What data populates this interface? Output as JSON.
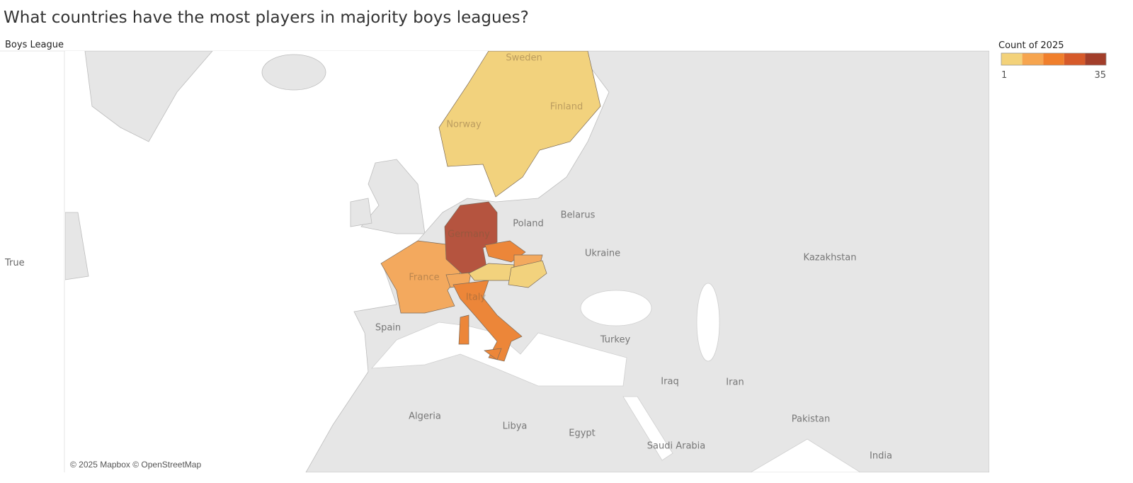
{
  "header": {
    "title": "What countries have the most players in majority boys leagues?"
  },
  "row_header": "Boys League",
  "row_label": "True",
  "legend": {
    "title": "Count of 2025",
    "min": 1,
    "max": 35,
    "colors": [
      "#f3d27a",
      "#f6a54f",
      "#f07f2c",
      "#d65a2a",
      "#a23e2a"
    ]
  },
  "map": {
    "labels": [
      "Sweden",
      "Finland",
      "Norway",
      "Germany",
      "Poland",
      "Belarus",
      "Ukraine",
      "Kazakhstan",
      "France",
      "Italy",
      "Spain",
      "Turkey",
      "Iraq",
      "Iran",
      "Algeria",
      "Libya",
      "Egypt",
      "Saudi Arabia",
      "Pakistan",
      "India"
    ],
    "attribution": "© 2025 Mapbox © OpenStreetMap"
  }
}
